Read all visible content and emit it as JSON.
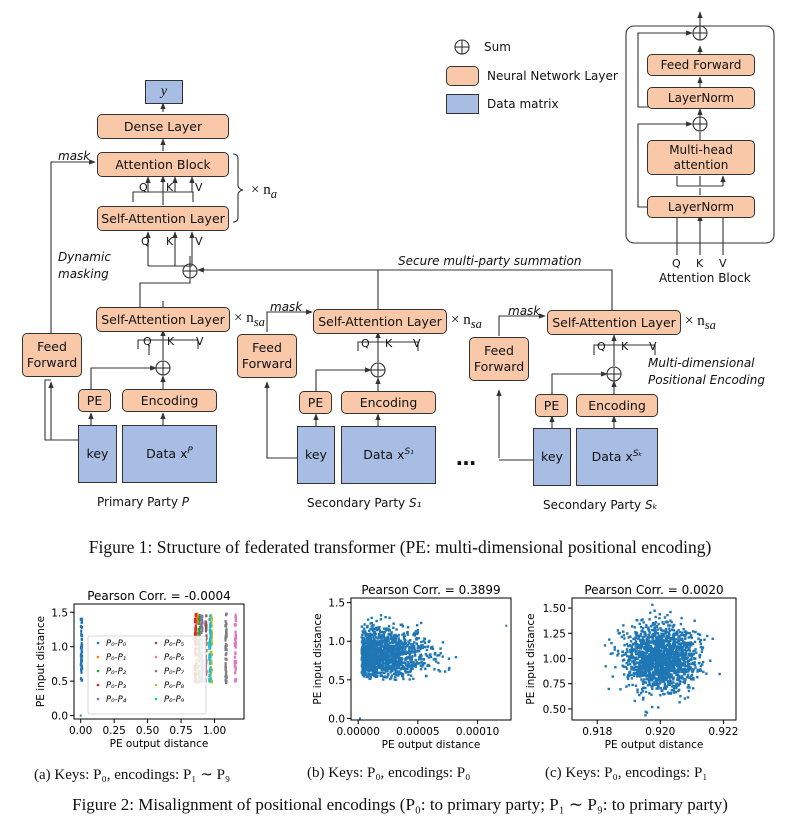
{
  "legend": {
    "sum": "Sum",
    "nn_layer": "Neural Network Layer",
    "data_matrix": "Data matrix"
  },
  "top": {
    "y": "y",
    "dense": "Dense Layer",
    "attention_block": "Attention Block",
    "self_attention": "Self-Attention Layer",
    "mask": "mask",
    "times_na": "× n",
    "na_sub": "a",
    "q": "Q",
    "k": "K",
    "v": "V",
    "dynamic_masking_1": "Dynamic",
    "dynamic_masking_2": "masking",
    "secure_sum": "Secure multi-party summation"
  },
  "parties": [
    {
      "self_attention": "Self-Attention Layer",
      "times": "× n",
      "sub": "sa",
      "feed_forward_1": "Feed",
      "feed_forward_2": "Forward",
      "pe": "PE",
      "encoding": "Encoding",
      "key": "key",
      "data": "Data x",
      "data_sup": "P",
      "label": "Primary Party ",
      "label_var": "P"
    },
    {
      "self_attention": "Self-Attention Layer",
      "times": "× n",
      "sub": "sa",
      "feed_forward_1": "Feed",
      "feed_forward_2": "Forward",
      "pe": "PE",
      "encoding": "Encoding",
      "key": "key",
      "data": "Data x",
      "data_sup": "S₁",
      "label": "Secondary Party ",
      "label_var": "S₁",
      "mask": "mask"
    },
    {
      "self_attention": "Self-Attention Layer",
      "times": "× n",
      "sub": "sa",
      "feed_forward_1": "Feed",
      "feed_forward_2": "Forward",
      "pe": "PE",
      "encoding": "Encoding",
      "key": "key",
      "data": "Data x",
      "data_sup": "Sₖ",
      "label": "Secondary Party ",
      "label_var": "Sₖ",
      "mask": "mask"
    }
  ],
  "ellipsis": "…",
  "multi_dim_1": "Multi-dimensional",
  "multi_dim_2": "Positional Encoding",
  "attn_block_detail": {
    "feed_forward": "Feed Forward",
    "layernorm_top": "LayerNorm",
    "mha_1": "Multi-head",
    "mha_2": "attention",
    "layernorm_bottom": "LayerNorm",
    "q": "Q",
    "k": "K",
    "v": "V",
    "title": "Attention Block"
  },
  "figure1_caption": "Figure 1: Structure of federated transformer (PE: multi-dimensional positional encoding)",
  "figure2_caption": "Figure 2: Misalignment of positional encodings (P₀: to primary party; P₁ ∼ P₉: to primary party)",
  "subcaptions": [
    "(a) Keys: P₀, encodings: P₁ ∼ P₉",
    "(b) Keys: P₀, encodings: P₀",
    "(c) Keys: P₀, encodings: P₁"
  ],
  "chart_data": [
    {
      "type": "scatter",
      "title": "Pearson Corr. = -0.0004",
      "xlabel": "PE output distance",
      "ylabel": "PE input distance",
      "xlim": [
        -0.05,
        1.22
      ],
      "ylim": [
        -0.05,
        1.62
      ],
      "xticks": [
        0.0,
        0.25,
        0.5,
        0.75,
        1.0
      ],
      "xtick_labels": [
        "0.00",
        "0.25",
        "0.50",
        "0.75",
        "1.00"
      ],
      "yticks": [
        0.0,
        0.5,
        1.0,
        1.5
      ],
      "ytick_labels": [
        "0.0",
        "0.5",
        "1.0",
        "1.5"
      ],
      "legend_position": "lower-center",
      "grid": false,
      "series": [
        {
          "name": "P₀-P₀",
          "color": "#1f77b4",
          "x_range": [
            0.0,
            0.01
          ],
          "y_range": [
            0.48,
            1.5
          ]
        },
        {
          "name": "P₀-P₁",
          "color": "#ff7f0e",
          "x_range": [
            0.86,
            0.87
          ],
          "y_range": [
            0.5,
            1.5
          ]
        },
        {
          "name": "P₀-P₂",
          "color": "#2ca02c",
          "x_range": [
            0.88,
            0.89
          ],
          "y_range": [
            0.5,
            1.5
          ]
        },
        {
          "name": "P₀-P₃",
          "color": "#d62728",
          "x_range": [
            0.85,
            0.86
          ],
          "y_range": [
            0.5,
            1.5
          ]
        },
        {
          "name": "P₀-P₄",
          "color": "#9467bd",
          "x_range": [
            0.9,
            0.91
          ],
          "y_range": [
            0.5,
            1.5
          ]
        },
        {
          "name": "P₀-P₅",
          "color": "#8c564b",
          "x_range": [
            0.93,
            0.94
          ],
          "y_range": [
            0.5,
            1.5
          ]
        },
        {
          "name": "P₀-P₆",
          "color": "#e377c2",
          "x_range": [
            1.15,
            1.16
          ],
          "y_range": [
            0.5,
            1.5
          ]
        },
        {
          "name": "P₀-P₇",
          "color": "#7f7f7f",
          "x_range": [
            1.08,
            1.09
          ],
          "y_range": [
            0.5,
            1.5
          ]
        },
        {
          "name": "P₀-P₈",
          "color": "#bcbd22",
          "x_range": [
            0.97,
            0.98
          ],
          "y_range": [
            0.5,
            1.5
          ]
        },
        {
          "name": "P₀-P₉",
          "color": "#17becf",
          "x_range": [
            0.96,
            0.97
          ],
          "y_range": [
            0.5,
            1.5
          ]
        }
      ]
    },
    {
      "type": "scatter",
      "title": "Pearson Corr. = 0.3899",
      "xlabel": "PE output distance",
      "ylabel": "PE input distance",
      "xlim": [
        -6e-06,
        0.000128
      ],
      "ylim": [
        -0.02,
        1.56
      ],
      "xticks": [
        0.0,
        5e-05,
        0.0001
      ],
      "xtick_labels": [
        "0.00000",
        "0.00005",
        "0.00010"
      ],
      "yticks": [
        0.0,
        0.5,
        1.0,
        1.5
      ],
      "ytick_labels": [
        "0.0",
        "0.5",
        "1.0",
        "1.5"
      ],
      "grid": false,
      "series": [
        {
          "color": "#1f77b4",
          "description_points": [
            [
              1.5e-06,
              0.0
            ],
            [
              0.000124,
              1.2
            ]
          ],
          "cloud": {
            "x_range": [
              0.0,
              0.00011
            ],
            "y_range": [
              0.5,
              1.5
            ]
          }
        }
      ]
    },
    {
      "type": "scatter",
      "title": "Pearson Corr. = 0.0020",
      "xlabel": "PE output distance",
      "ylabel": "PE input distance",
      "xlim": [
        0.9172,
        0.9224
      ],
      "ylim": [
        0.39,
        1.6
      ],
      "xticks": [
        0.918,
        0.92,
        0.922
      ],
      "xtick_labels": [
        "0.918",
        "0.920",
        "0.922"
      ],
      "yticks": [
        0.5,
        0.75,
        1.0,
        1.25,
        1.5
      ],
      "ytick_labels": [
        "0.50",
        "0.75",
        "1.00",
        "1.25",
        "1.50"
      ],
      "grid": false,
      "series": [
        {
          "color": "#1f77b4",
          "cloud": {
            "center": [
              0.92,
              1.0
            ],
            "x_range": [
              0.9185,
              0.9218
            ],
            "y_range": [
              0.45,
              1.55
            ]
          }
        }
      ]
    }
  ]
}
